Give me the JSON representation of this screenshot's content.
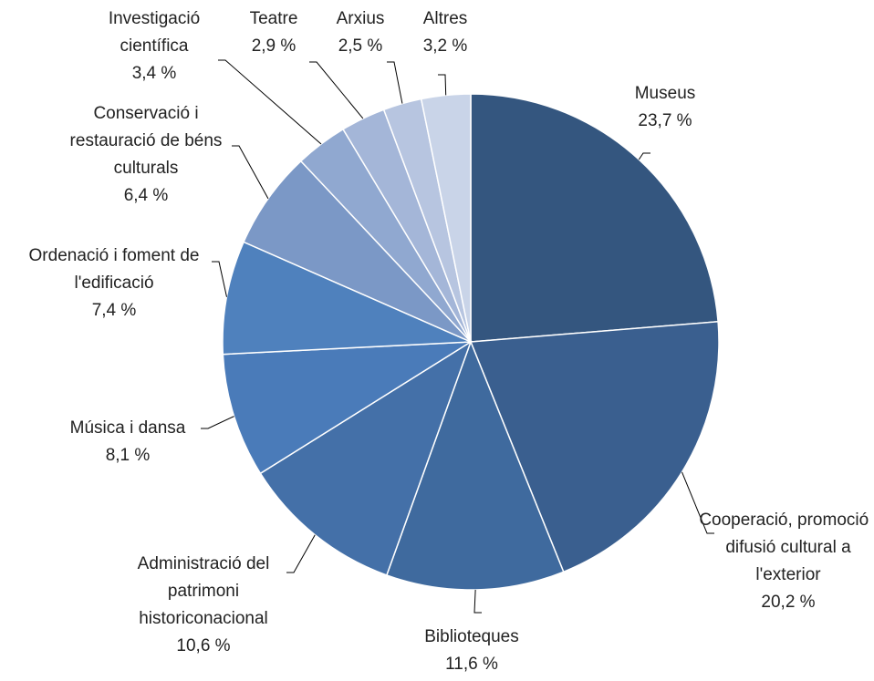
{
  "chart_data": {
    "type": "pie",
    "categories": [
      "Museus",
      "Cooperació, promoció i difusió cultural a l'exterior",
      "Biblioteques",
      "Administració del patrimoni historiconacional",
      "Música i dansa",
      "Ordenació i foment de l'edificació",
      "Conservació i restauració de béns culturals",
      "Investigació científica",
      "Teatre",
      "Arxius",
      "Altres"
    ],
    "values": [
      23.7,
      20.2,
      11.6,
      10.6,
      8.1,
      7.4,
      6.4,
      3.4,
      2.9,
      2.5,
      3.2
    ],
    "value_labels": [
      "23,7 %",
      "20,2 %",
      "11,6 %",
      "10,6 %",
      "8,1 %",
      "7,4 %",
      "6,4 %",
      "3,4 %",
      "2,9 %",
      "2,5 %",
      "3,2 %"
    ],
    "colors": [
      "#34567f",
      "#3a5f8f",
      "#3f6a9e",
      "#4470a8",
      "#4a7bb9",
      "#4f81bd",
      "#7b98c6",
      "#90a8d0",
      "#a4b6d8",
      "#b7c5e0",
      "#c9d4e8"
    ]
  }
}
